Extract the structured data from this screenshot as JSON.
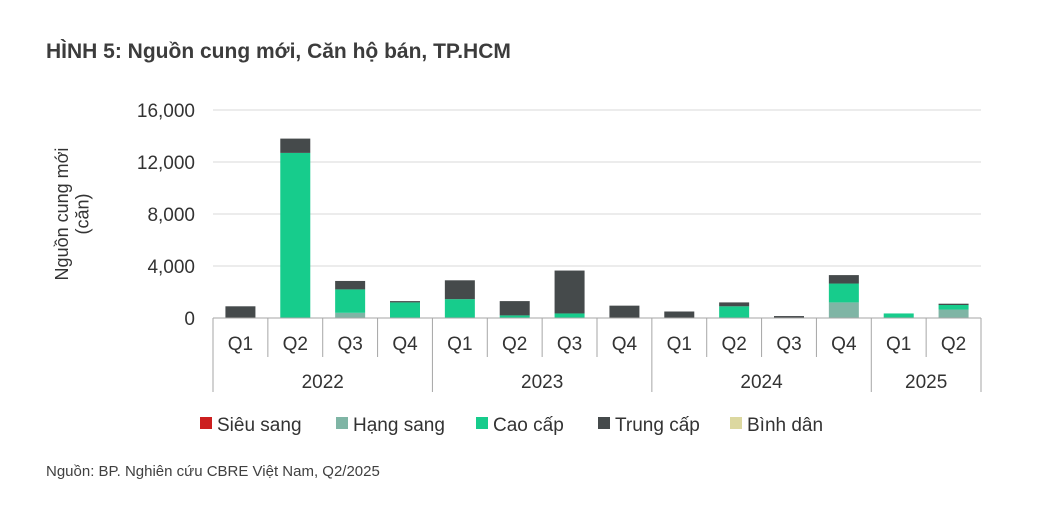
{
  "title": "HÌNH 5: Nguồn cung mới, Căn hộ bán, TP.HCM",
  "source": "Nguồn: BP. Nghiên cứu CBRE Việt Nam, Q2/2025",
  "chart_data": {
    "type": "bar",
    "stacked": true,
    "ylabel": [
      "Nguồn cung mới",
      "(căn)"
    ],
    "ylim": [
      0,
      16000
    ],
    "yticks": [
      "0",
      "4,000",
      "8,000",
      "12,000",
      "16,000"
    ],
    "ytick_values": [
      0,
      4000,
      8000,
      12000,
      16000
    ],
    "grid": true,
    "legend_position": "bottom",
    "categories": [
      "Q1",
      "Q2",
      "Q3",
      "Q4",
      "Q1",
      "Q2",
      "Q3",
      "Q4",
      "Q1",
      "Q2",
      "Q3",
      "Q4",
      "Q1",
      "Q2"
    ],
    "groups": [
      {
        "label": "2022",
        "count": 4
      },
      {
        "label": "2023",
        "count": 4
      },
      {
        "label": "2024",
        "count": 4
      },
      {
        "label": "2025",
        "count": 2
      }
    ],
    "series": [
      {
        "name": "Siêu sang",
        "color": "#cc1f1f",
        "values": [
          0,
          0,
          0,
          0,
          0,
          0,
          0,
          0,
          0,
          0,
          0,
          0,
          0,
          0
        ]
      },
      {
        "name": "Hạng sang",
        "color": "#7fb5a5",
        "values": [
          0,
          0,
          400,
          0,
          0,
          0,
          0,
          0,
          0,
          0,
          0,
          1200,
          0,
          650
        ]
      },
      {
        "name": "Cao cấp",
        "color": "#17cc8c",
        "values": [
          0,
          12700,
          1800,
          1200,
          1450,
          200,
          350,
          0,
          0,
          900,
          0,
          1450,
          350,
          350
        ]
      },
      {
        "name": "Trung cấp",
        "color": "#454a4b",
        "values": [
          900,
          1100,
          650,
          100,
          1450,
          1100,
          3300,
          950,
          500,
          300,
          150,
          650,
          0,
          100
        ]
      },
      {
        "name": "Bình dân",
        "color": "#dcd8a0",
        "values": [
          0,
          0,
          0,
          0,
          0,
          0,
          0,
          0,
          0,
          0,
          0,
          0,
          0,
          0
        ]
      }
    ]
  }
}
